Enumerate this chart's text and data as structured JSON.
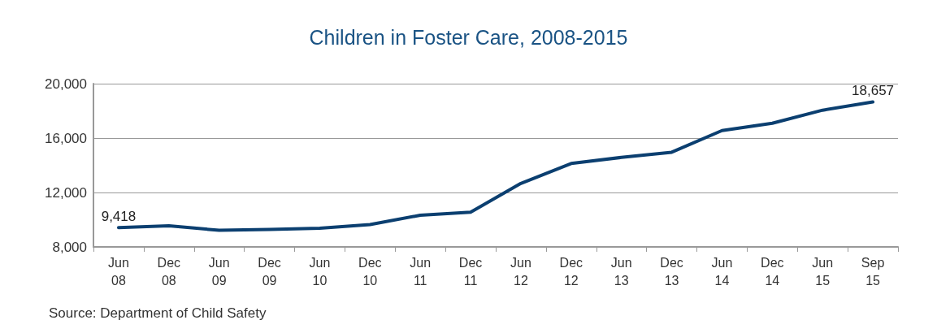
{
  "chart_data": {
    "type": "line",
    "title": "Children in Foster Care, 2008-2015",
    "categories": [
      "Jun\n08",
      "Dec\n08",
      "Jun\n09",
      "Dec\n09",
      "Jun\n10",
      "Dec\n10",
      "Jun\n11",
      "Dec\n11",
      "Jun\n12",
      "Dec\n12",
      "Jun\n13",
      "Dec\n13",
      "Jun\n14",
      "Dec\n14",
      "Jun\n15",
      "Sep\n15"
    ],
    "series": [
      {
        "color": "#0b3f70",
        "values": [
          9418,
          9550,
          9220,
          9290,
          9380,
          9640,
          10330,
          10550,
          12670,
          14130,
          14580,
          14960,
          16550,
          17090,
          18050,
          18657
        ],
        "value_labels": [
          "9,418",
          null,
          null,
          null,
          null,
          null,
          null,
          null,
          null,
          null,
          null,
          null,
          null,
          null,
          null,
          "18,657"
        ]
      }
    ],
    "ylim": [
      8000,
      20000
    ],
    "yticks": [
      {
        "value": 8000,
        "label": "8,000"
      },
      {
        "value": 12000,
        "label": "12,000"
      },
      {
        "value": 16000,
        "label": "16,000"
      },
      {
        "value": 20000,
        "label": "20,000"
      }
    ],
    "grid": "y",
    "marker": "none",
    "line_style": "solid",
    "annotations": [
      "Source: Department of Child Safety"
    ]
  }
}
